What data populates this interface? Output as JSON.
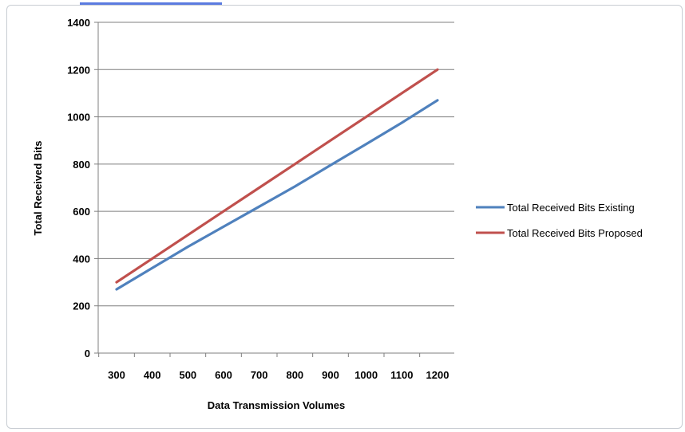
{
  "chart_data": {
    "type": "line",
    "title": "",
    "xlabel": "Data Transmission  Volumes",
    "ylabel": "Total Received Bits",
    "categories": [
      "300",
      "400",
      "500",
      "600",
      "700",
      "800",
      "900",
      "1000",
      "1100",
      "1200"
    ],
    "ylim": [
      0,
      1400
    ],
    "yticks": [
      0,
      200,
      400,
      600,
      800,
      1000,
      1200,
      1400
    ],
    "grid": true,
    "legend_position": "right",
    "series": [
      {
        "name": "Total Received Bits Existing",
        "color": "#4f81bd",
        "values": [
          270,
          360,
          450,
          535,
          620,
          705,
          795,
          885,
          975,
          1070
        ]
      },
      {
        "name": "Total Received Bits Proposed",
        "color": "#c0504d",
        "values": [
          300,
          400,
          500,
          600,
          700,
          800,
          900,
          1000,
          1100,
          1200
        ]
      }
    ]
  }
}
